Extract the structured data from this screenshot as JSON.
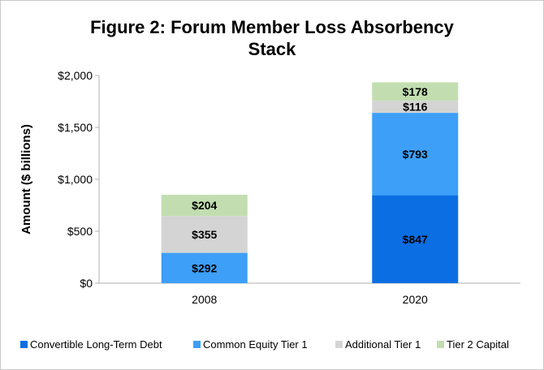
{
  "chart_data": {
    "type": "bar",
    "stacked": true,
    "title_lines": [
      "Figure 2: Forum Member Loss Absorbency",
      "Stack"
    ],
    "ylabel": "Amount ($ billions)",
    "xlabel": "",
    "ylim": [
      0,
      2000
    ],
    "y_ticks": [
      0,
      500,
      1000,
      1500,
      2000
    ],
    "y_tick_labels": [
      "$0",
      "$500",
      "$1,000",
      "$1,500",
      "$2,000"
    ],
    "categories": [
      "2008",
      "2020"
    ],
    "grid": false,
    "legend_position": "bottom",
    "series": [
      {
        "name": "Convertible Long-Term Debt",
        "color": "#0b6fe3",
        "values": [
          0,
          847
        ],
        "labels": [
          "",
          "$847"
        ]
      },
      {
        "name": "Common Equity Tier 1",
        "color": "#3d9ff7",
        "values": [
          292,
          793
        ],
        "labels": [
          "$292",
          "$793"
        ]
      },
      {
        "name": "Additional Tier 1",
        "color": "#d4d4d4",
        "values": [
          355,
          116
        ],
        "labels": [
          "$355",
          "$116"
        ]
      },
      {
        "name": "Tier 2 Capital",
        "color": "#c2deb0",
        "values": [
          204,
          178
        ],
        "labels": [
          "$204",
          "$178"
        ]
      }
    ]
  }
}
